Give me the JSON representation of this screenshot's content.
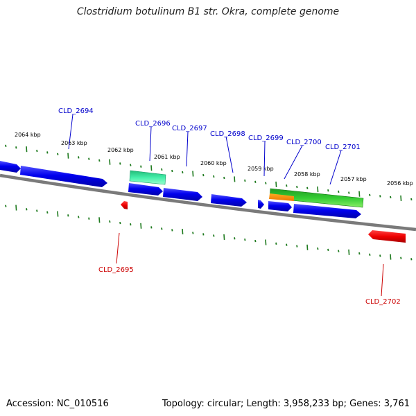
{
  "title": "Clostridium botulinum B1 str. Okra, complete genome",
  "footer": {
    "accession": "Accession: NC_010516",
    "summary": "Topology: circular; Length: 3,958,233 bp; Genes: 3,761"
  },
  "colors": {
    "backbone": "#808080",
    "tick": "#1e7a1e",
    "forward_gene": "#0000ee",
    "reverse_gene": "#ee0000",
    "rrna_feature": "#33dd99",
    "green_feature": "#33bb33",
    "orange_feature": "#ff9900",
    "forward_label": "#0000cc",
    "reverse_label": "#cc0000"
  },
  "tick_labels": [
    "2064 kbp",
    "2063 kbp",
    "2062 kbp",
    "2061 kbp",
    "2060 kbp",
    "2059 kbp",
    "2058 kbp",
    "2057 kbp",
    "2056 kbp"
  ],
  "gene_labels": [
    {
      "text": "CLD_2694",
      "strand": "forward"
    },
    {
      "text": "CLD_2696",
      "strand": "forward"
    },
    {
      "text": "CLD_2697",
      "strand": "forward"
    },
    {
      "text": "CLD_2698",
      "strand": "forward"
    },
    {
      "text": "CLD_2699",
      "strand": "forward"
    },
    {
      "text": "CLD_2700",
      "strand": "forward"
    },
    {
      "text": "CLD_2701",
      "strand": "forward"
    },
    {
      "text": "CLD_2695",
      "strand": "reverse"
    },
    {
      "text": "CLD_2702",
      "strand": "reverse"
    }
  ]
}
